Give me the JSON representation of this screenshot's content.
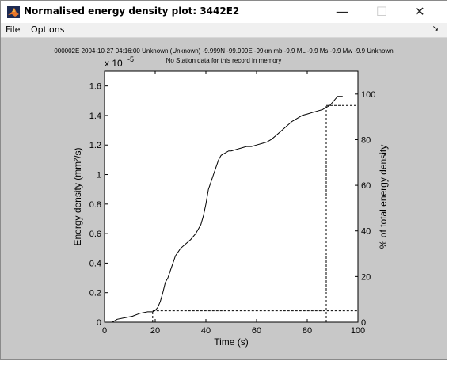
{
  "window": {
    "title": "Normalised energy density plot: 3442E2",
    "minimize_glyph": "—",
    "maximize_glyph": "☐",
    "close_glyph": "✕"
  },
  "menu": {
    "items": [
      "File",
      "Options"
    ],
    "dock_glyph": "↘"
  },
  "info": {
    "line1": "000002E 2004-10-27 04:16:00 Unknown (Unknown) -9.999N -99.999E -99km  mb -9.9 ML -9.9 Ms -9.9 Mw -9.9 Unknown",
    "line2": "No Station data for this record in memory"
  },
  "colors": {
    "figure_bg": "#c8c8c8",
    "axes_bg": "#ffffff",
    "line": "#000000"
  },
  "chart_data": {
    "type": "line",
    "xlabel": "Time (s)",
    "ylabel": "Energy density (mm²/s)",
    "ylabel_right": "% of total energy density",
    "y_exponent_label": "x 10",
    "y_exponent_power": "-5",
    "xlim": [
      0,
      100
    ],
    "ylim": [
      0,
      1.7
    ],
    "ylim_right": [
      0,
      110
    ],
    "xticks": [
      0,
      20,
      40,
      60,
      80,
      100
    ],
    "yticks": [
      0,
      0.2,
      0.4,
      0.6,
      0.8,
      1,
      1.2,
      1.4,
      1.6
    ],
    "yticks_right": [
      0,
      20,
      40,
      60,
      80,
      100
    ],
    "grid": false,
    "series": [
      {
        "x": [
          0,
          3,
          5,
          8,
          11,
          14,
          17,
          19,
          20,
          21,
          22,
          23,
          24,
          25,
          26,
          27,
          28,
          30,
          32,
          34,
          36,
          37,
          38,
          39,
          40,
          41,
          42,
          43,
          44,
          45,
          46,
          47,
          48,
          49,
          50,
          52,
          54,
          56,
          58,
          60,
          62,
          64,
          66,
          68,
          70,
          72,
          74,
          76,
          78,
          80,
          82,
          84,
          86,
          87,
          88,
          89,
          90,
          92,
          94
        ],
        "y": [
          0,
          0,
          0.02,
          0.03,
          0.04,
          0.06,
          0.07,
          0.07,
          0.08,
          0.1,
          0.14,
          0.2,
          0.27,
          0.3,
          0.35,
          0.4,
          0.45,
          0.5,
          0.53,
          0.56,
          0.6,
          0.63,
          0.66,
          0.72,
          0.8,
          0.9,
          0.95,
          1.0,
          1.05,
          1.1,
          1.13,
          1.14,
          1.15,
          1.16,
          1.16,
          1.17,
          1.18,
          1.19,
          1.19,
          1.2,
          1.21,
          1.22,
          1.24,
          1.27,
          1.3,
          1.33,
          1.36,
          1.38,
          1.4,
          1.41,
          1.42,
          1.43,
          1.44,
          1.45,
          1.46,
          1.47,
          1.49,
          1.53,
          1.53
        ]
      }
    ],
    "annotations": [
      {
        "type": "dashed-marker",
        "x": 19,
        "percent": 5
      },
      {
        "type": "dashed-marker",
        "x": 87.5,
        "percent": 95
      }
    ]
  }
}
